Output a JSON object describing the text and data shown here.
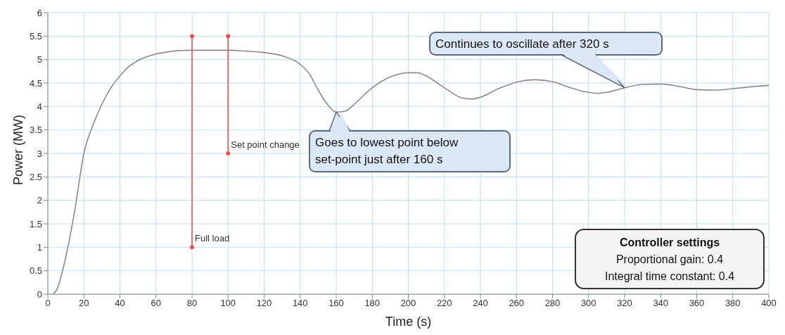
{
  "chart_data": {
    "type": "line",
    "xlabel": "Time (s)",
    "ylabel": "Power (MW)",
    "xlim": [
      0,
      400
    ],
    "xticks": [
      0,
      20,
      40,
      60,
      80,
      100,
      120,
      140,
      160,
      180,
      200,
      220,
      240,
      260,
      280,
      300,
      320,
      340,
      360,
      380,
      400
    ],
    "ylim": [
      0,
      6
    ],
    "yticks": [
      0,
      0.5,
      1,
      1.5,
      2,
      2.5,
      3,
      3.5,
      4,
      4.5,
      5,
      5.5,
      6
    ],
    "grid": true,
    "legend": false,
    "line_style": "solid",
    "series": [
      {
        "color": "#8c8c8c",
        "marker": "none",
        "x": [
          3,
          5,
          10,
          15,
          20,
          25,
          30,
          35,
          40,
          45,
          50,
          60,
          70,
          80,
          100,
          110,
          120,
          130,
          140,
          145,
          150,
          155,
          160,
          165,
          170,
          180,
          190,
          200,
          205,
          210,
          220,
          230,
          235,
          240,
          250,
          260,
          270,
          280,
          290,
          300,
          305,
          310,
          320,
          330,
          340,
          350,
          360,
          370,
          380,
          390,
          400
        ],
        "values": [
          0,
          0.1,
          0.8,
          1.8,
          3,
          3.6,
          4.05,
          4.4,
          4.65,
          4.85,
          4.98,
          5.12,
          5.18,
          5.2,
          5.2,
          5.18,
          5.15,
          5.08,
          4.9,
          4.7,
          4.35,
          4.05,
          3.88,
          3.9,
          4.05,
          4.4,
          4.63,
          4.72,
          4.72,
          4.65,
          4.4,
          4.18,
          4.16,
          4.2,
          4.38,
          4.52,
          4.57,
          4.53,
          4.4,
          4.3,
          4.28,
          4.3,
          4.4,
          4.47,
          4.48,
          4.43,
          4.36,
          4.35,
          4.38,
          4.42,
          4.45
        ]
      },
      {
        "name": "Full load",
        "color": "#ff4444",
        "marker": "circle",
        "x": [
          80,
          80
        ],
        "values": [
          1,
          5.5
        ]
      },
      {
        "name": "Set point change",
        "color": "#ff4444",
        "marker": "circle",
        "x": [
          100,
          100
        ],
        "values": [
          3,
          5.5
        ]
      }
    ],
    "annotations": [
      {
        "text": "Goes to lowest point below set-point just after 160 s",
        "x": 160,
        "y": 3.88
      },
      {
        "text": "Continues to oscillate after 320 s",
        "x": 320,
        "y": 4.4
      },
      "Controller settings",
      "Proportional gain: 0.4",
      "Integral time constant: 0.4"
    ]
  }
}
